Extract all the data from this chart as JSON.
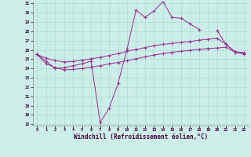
{
  "xlabel": "Windchill (Refroidissement éolien,°C)",
  "bg_color": "#cceee8",
  "line_color": "#993399",
  "grid_color": "#aaddcc",
  "x": [
    0,
    1,
    2,
    3,
    4,
    5,
    6,
    7,
    8,
    9,
    10,
    11,
    12,
    13,
    14,
    15,
    16,
    17,
    18,
    19,
    20,
    21,
    22,
    23
  ],
  "line1": [
    25.5,
    24.8,
    24.0,
    24.1,
    24.3,
    24.5,
    24.8,
    18.2,
    19.7,
    22.4,
    26.1,
    30.3,
    29.5,
    30.2,
    31.2,
    29.5,
    29.4,
    28.8,
    28.2,
    null,
    28.1,
    26.6,
    25.8,
    25.7
  ],
  "line2": [
    25.5,
    null,
    null,
    null,
    null,
    null,
    null,
    null,
    null,
    null,
    null,
    null,
    null,
    null,
    null,
    null,
    null,
    null,
    null,
    null,
    null,
    null,
    null,
    25.65
  ],
  "line3": [
    25.5,
    25.1,
    24.85,
    24.7,
    24.75,
    24.9,
    25.05,
    25.2,
    25.4,
    25.6,
    25.85,
    26.05,
    26.25,
    26.45,
    26.6,
    26.7,
    26.8,
    26.9,
    27.05,
    27.15,
    27.25,
    26.6,
    25.8,
    25.65
  ],
  "line4": [
    25.5,
    24.5,
    24.1,
    23.85,
    23.9,
    24.0,
    24.15,
    24.3,
    24.5,
    24.65,
    24.85,
    25.05,
    25.25,
    25.45,
    25.6,
    25.75,
    25.85,
    25.95,
    26.05,
    26.15,
    26.2,
    26.3,
    25.75,
    25.55
  ],
  "ylim": [
    18,
    31
  ],
  "xlim": [
    0,
    23
  ],
  "yticks": [
    18,
    19,
    20,
    21,
    22,
    23,
    24,
    25,
    26,
    27,
    28,
    29,
    30,
    31
  ],
  "xticks": [
    0,
    1,
    2,
    3,
    4,
    5,
    6,
    7,
    8,
    9,
    10,
    11,
    12,
    13,
    14,
    15,
    16,
    17,
    18,
    19,
    20,
    21,
    22,
    23
  ]
}
